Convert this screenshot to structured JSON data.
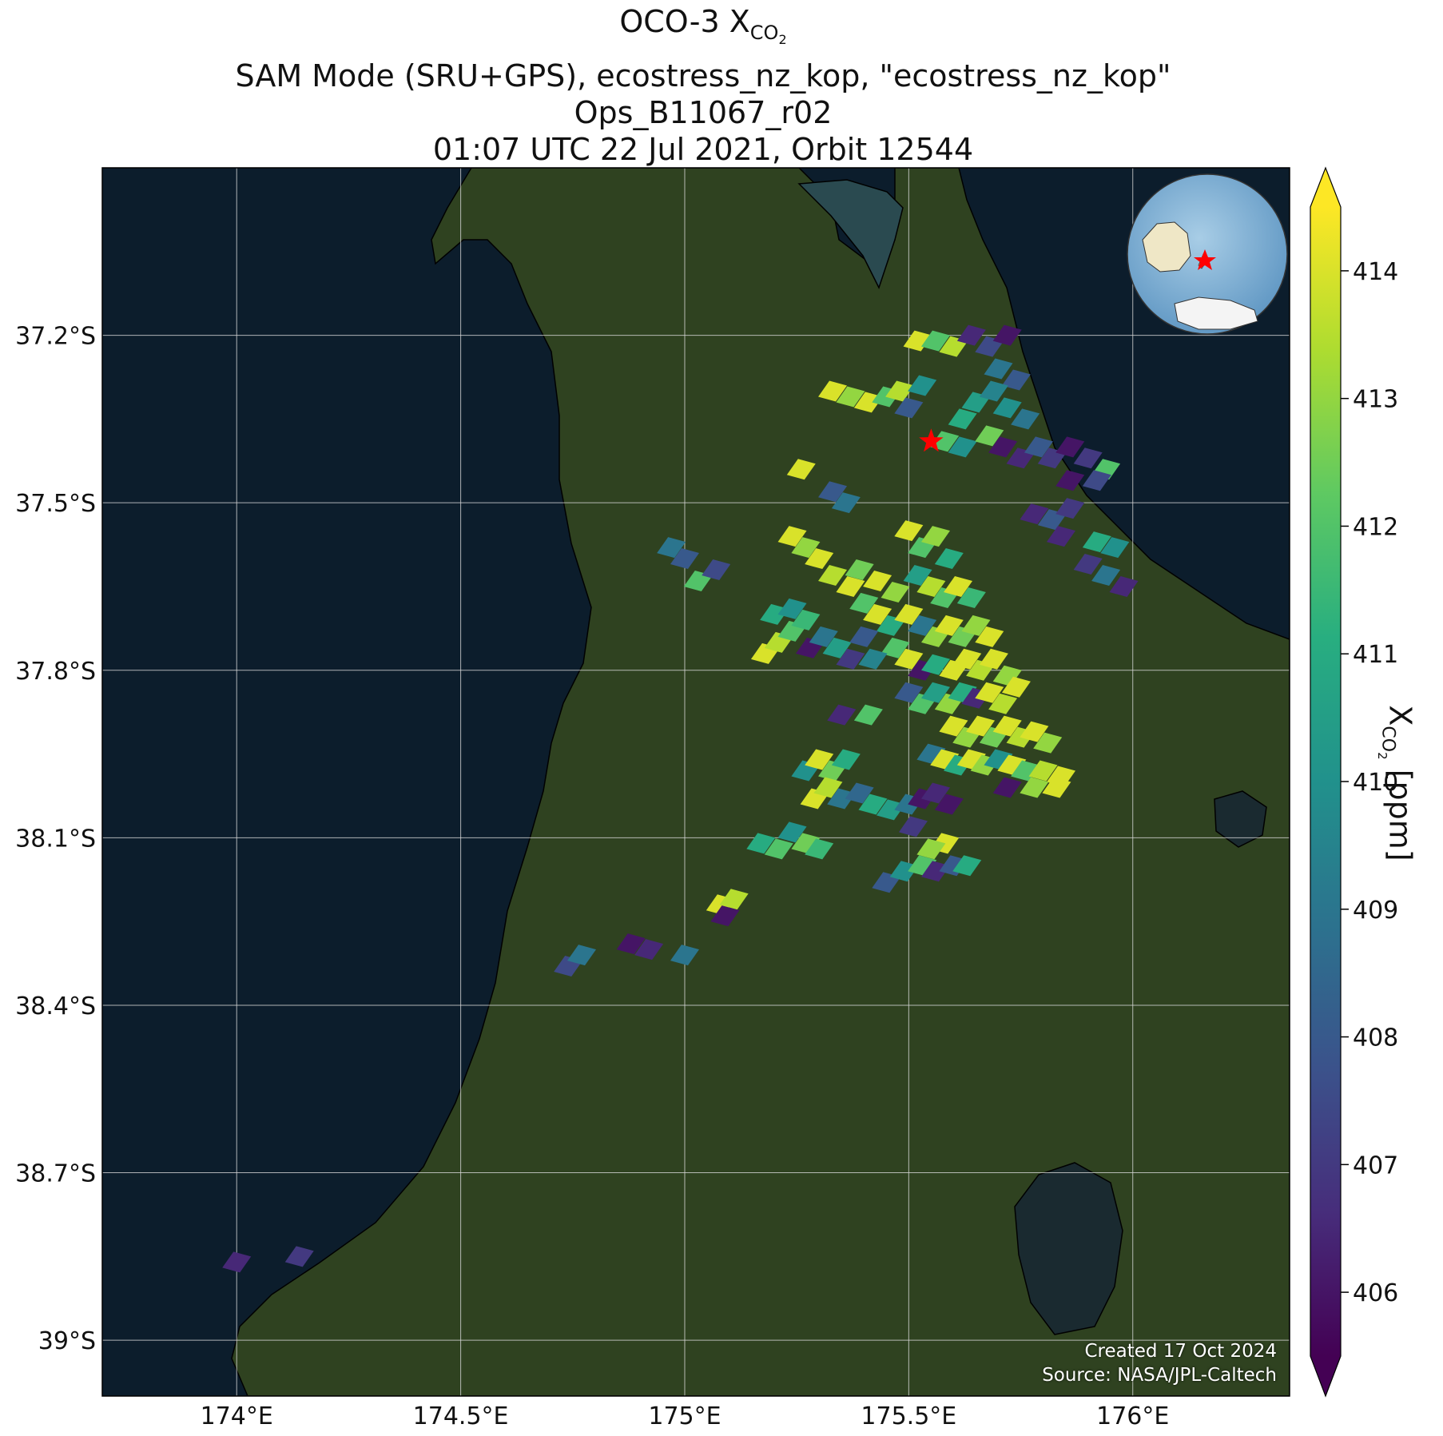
{
  "title": {
    "line1_prefix": "OCO-3 X",
    "line1_sub": "CO",
    "line1_subsub": "2",
    "line2": "SAM Mode (SRU+GPS), ecostress_nz_kop, \"ecostress_nz_kop\"",
    "line3": "Ops_B11067_r02",
    "line4": "01:07 UTC 22 Jul 2021, Orbit 12544"
  },
  "map": {
    "lon_range": [
      173.7,
      176.35
    ],
    "lat_range": [
      -39.1,
      -36.9
    ],
    "lon_ticks": [
      174.0,
      174.5,
      175.0,
      175.5,
      176.0
    ],
    "lon_tick_labels": [
      "174°E",
      "174.5°E",
      "175°E",
      "175.5°E",
      "176°E"
    ],
    "lat_ticks": [
      -37.2,
      -37.5,
      -37.8,
      -38.1,
      -38.4,
      -38.7,
      -39.0
    ],
    "lat_tick_labels": [
      "37.2°S",
      "37.5°S",
      "37.8°S",
      "38.1°S",
      "38.4°S",
      "38.7°S",
      "39°S"
    ],
    "target_marker": {
      "lon": 175.55,
      "lat": -37.39,
      "color": "#ff0000"
    },
    "ocean_color": "#0c1d2c",
    "land_color": "#2f4220",
    "gridlines": true
  },
  "colorbar": {
    "min": 405.5,
    "max": 414.5,
    "ticks": [
      406,
      407,
      408,
      409,
      410,
      411,
      412,
      413,
      414
    ],
    "title_prefix": "X",
    "title_sub": "CO",
    "title_subsub": "2",
    "title_suffix": " [ppm]",
    "colormap": "viridis",
    "extend": "both"
  },
  "credit": {
    "created": "Created 17 Oct 2024",
    "source": "Source: NASA/JPL-Caltech"
  },
  "chart_data": {
    "type": "scatter",
    "xlabel": "",
    "ylabel": "",
    "value_unit": "ppm",
    "soundings": [
      {
        "lon": 175.52,
        "lat": -37.21,
        "xco2": 414
      },
      {
        "lon": 175.56,
        "lat": -37.21,
        "xco2": 412
      },
      {
        "lon": 175.6,
        "lat": -37.22,
        "xco2": 413.5
      },
      {
        "lon": 175.64,
        "lat": -37.2,
        "xco2": 406.5
      },
      {
        "lon": 175.68,
        "lat": -37.22,
        "xco2": 407.5
      },
      {
        "lon": 175.72,
        "lat": -37.2,
        "xco2": 406
      },
      {
        "lon": 175.7,
        "lat": -37.26,
        "xco2": 409
      },
      {
        "lon": 175.74,
        "lat": -37.28,
        "xco2": 408
      },
      {
        "lon": 175.33,
        "lat": -37.3,
        "xco2": 414
      },
      {
        "lon": 175.37,
        "lat": -37.31,
        "xco2": 413
      },
      {
        "lon": 175.41,
        "lat": -37.32,
        "xco2": 414
      },
      {
        "lon": 175.45,
        "lat": -37.31,
        "xco2": 412
      },
      {
        "lon": 175.48,
        "lat": -37.3,
        "xco2": 413.5
      },
      {
        "lon": 175.5,
        "lat": -37.33,
        "xco2": 408
      },
      {
        "lon": 175.53,
        "lat": -37.29,
        "xco2": 410
      },
      {
        "lon": 175.62,
        "lat": -37.35,
        "xco2": 411
      },
      {
        "lon": 175.65,
        "lat": -37.32,
        "xco2": 410.5
      },
      {
        "lon": 175.69,
        "lat": -37.3,
        "xco2": 409.5
      },
      {
        "lon": 175.72,
        "lat": -37.33,
        "xco2": 410
      },
      {
        "lon": 175.76,
        "lat": -37.35,
        "xco2": 409
      },
      {
        "lon": 175.58,
        "lat": -37.39,
        "xco2": 412
      },
      {
        "lon": 175.62,
        "lat": -37.4,
        "xco2": 410
      },
      {
        "lon": 175.68,
        "lat": -37.38,
        "xco2": 412.5
      },
      {
        "lon": 175.71,
        "lat": -37.4,
        "xco2": 406
      },
      {
        "lon": 175.75,
        "lat": -37.42,
        "xco2": 406.5
      },
      {
        "lon": 175.79,
        "lat": -37.4,
        "xco2": 408
      },
      {
        "lon": 175.82,
        "lat": -37.42,
        "xco2": 407
      },
      {
        "lon": 175.86,
        "lat": -37.4,
        "xco2": 406
      },
      {
        "lon": 175.9,
        "lat": -37.42,
        "xco2": 407
      },
      {
        "lon": 175.94,
        "lat": -37.44,
        "xco2": 412
      },
      {
        "lon": 175.86,
        "lat": -37.46,
        "xco2": 406
      },
      {
        "lon": 175.92,
        "lat": -37.46,
        "xco2": 407.5
      },
      {
        "lon": 175.26,
        "lat": -37.44,
        "xco2": 414
      },
      {
        "lon": 175.33,
        "lat": -37.48,
        "xco2": 408
      },
      {
        "lon": 175.36,
        "lat": -37.5,
        "xco2": 409
      },
      {
        "lon": 175.78,
        "lat": -37.52,
        "xco2": 406.5
      },
      {
        "lon": 175.82,
        "lat": -37.53,
        "xco2": 408
      },
      {
        "lon": 175.86,
        "lat": -37.51,
        "xco2": 407
      },
      {
        "lon": 175.84,
        "lat": -37.56,
        "xco2": 406.5
      },
      {
        "lon": 175.92,
        "lat": -37.57,
        "xco2": 411
      },
      {
        "lon": 175.96,
        "lat": -37.58,
        "xco2": 410
      },
      {
        "lon": 175.9,
        "lat": -37.61,
        "xco2": 407
      },
      {
        "lon": 175.94,
        "lat": -37.63,
        "xco2": 409
      },
      {
        "lon": 175.98,
        "lat": -37.65,
        "xco2": 406.5
      },
      {
        "lon": 174.97,
        "lat": -37.58,
        "xco2": 409
      },
      {
        "lon": 175.0,
        "lat": -37.6,
        "xco2": 408
      },
      {
        "lon": 175.03,
        "lat": -37.64,
        "xco2": 412
      },
      {
        "lon": 175.07,
        "lat": -37.62,
        "xco2": 407.5
      },
      {
        "lon": 175.24,
        "lat": -37.56,
        "xco2": 414
      },
      {
        "lon": 175.27,
        "lat": -37.58,
        "xco2": 413
      },
      {
        "lon": 175.3,
        "lat": -37.6,
        "xco2": 414
      },
      {
        "lon": 175.33,
        "lat": -37.63,
        "xco2": 413.5
      },
      {
        "lon": 175.37,
        "lat": -37.65,
        "xco2": 414
      },
      {
        "lon": 175.4,
        "lat": -37.68,
        "xco2": 412
      },
      {
        "lon": 175.43,
        "lat": -37.7,
        "xco2": 414
      },
      {
        "lon": 175.46,
        "lat": -37.72,
        "xco2": 411
      },
      {
        "lon": 175.39,
        "lat": -37.62,
        "xco2": 412.5
      },
      {
        "lon": 175.43,
        "lat": -37.64,
        "xco2": 414
      },
      {
        "lon": 175.47,
        "lat": -37.66,
        "xco2": 413
      },
      {
        "lon": 175.5,
        "lat": -37.55,
        "xco2": 414
      },
      {
        "lon": 175.53,
        "lat": -37.58,
        "xco2": 412
      },
      {
        "lon": 175.56,
        "lat": -37.56,
        "xco2": 413
      },
      {
        "lon": 175.59,
        "lat": -37.6,
        "xco2": 411
      },
      {
        "lon": 175.52,
        "lat": -37.63,
        "xco2": 410.5
      },
      {
        "lon": 175.55,
        "lat": -37.65,
        "xco2": 413.5
      },
      {
        "lon": 175.58,
        "lat": -37.67,
        "xco2": 412
      },
      {
        "lon": 175.61,
        "lat": -37.65,
        "xco2": 414
      },
      {
        "lon": 175.64,
        "lat": -37.67,
        "xco2": 411.5
      },
      {
        "lon": 175.5,
        "lat": -37.7,
        "xco2": 414
      },
      {
        "lon": 175.53,
        "lat": -37.72,
        "xco2": 409
      },
      {
        "lon": 175.56,
        "lat": -37.74,
        "xco2": 413
      },
      {
        "lon": 175.59,
        "lat": -37.72,
        "xco2": 414
      },
      {
        "lon": 175.62,
        "lat": -37.74,
        "xco2": 412.5
      },
      {
        "lon": 175.65,
        "lat": -37.72,
        "xco2": 413
      },
      {
        "lon": 175.68,
        "lat": -37.74,
        "xco2": 414
      },
      {
        "lon": 175.47,
        "lat": -37.76,
        "xco2": 412
      },
      {
        "lon": 175.5,
        "lat": -37.78,
        "xco2": 414
      },
      {
        "lon": 175.53,
        "lat": -37.8,
        "xco2": 406
      },
      {
        "lon": 175.56,
        "lat": -37.79,
        "xco2": 411
      },
      {
        "lon": 175.6,
        "lat": -37.8,
        "xco2": 414
      },
      {
        "lon": 175.63,
        "lat": -37.78,
        "xco2": 414
      },
      {
        "lon": 175.66,
        "lat": -37.8,
        "xco2": 413.5
      },
      {
        "lon": 175.69,
        "lat": -37.78,
        "xco2": 414
      },
      {
        "lon": 175.72,
        "lat": -37.81,
        "xco2": 413
      },
      {
        "lon": 175.74,
        "lat": -37.83,
        "xco2": 414
      },
      {
        "lon": 175.5,
        "lat": -37.84,
        "xco2": 408
      },
      {
        "lon": 175.53,
        "lat": -37.86,
        "xco2": 412
      },
      {
        "lon": 175.56,
        "lat": -37.84,
        "xco2": 410.5
      },
      {
        "lon": 175.59,
        "lat": -37.86,
        "xco2": 413
      },
      {
        "lon": 175.62,
        "lat": -37.84,
        "xco2": 411
      },
      {
        "lon": 175.65,
        "lat": -37.85,
        "xco2": 406.5
      },
      {
        "lon": 175.68,
        "lat": -37.84,
        "xco2": 414
      },
      {
        "lon": 175.71,
        "lat": -37.86,
        "xco2": 413.5
      },
      {
        "lon": 175.6,
        "lat": -37.9,
        "xco2": 414
      },
      {
        "lon": 175.63,
        "lat": -37.92,
        "xco2": 413
      },
      {
        "lon": 175.66,
        "lat": -37.9,
        "xco2": 414
      },
      {
        "lon": 175.69,
        "lat": -37.92,
        "xco2": 412.5
      },
      {
        "lon": 175.72,
        "lat": -37.9,
        "xco2": 414
      },
      {
        "lon": 175.75,
        "lat": -37.92,
        "xco2": 413.5
      },
      {
        "lon": 175.78,
        "lat": -37.91,
        "xco2": 414
      },
      {
        "lon": 175.81,
        "lat": -37.93,
        "xco2": 413
      },
      {
        "lon": 175.55,
        "lat": -37.95,
        "xco2": 409
      },
      {
        "lon": 175.58,
        "lat": -37.96,
        "xco2": 414
      },
      {
        "lon": 175.61,
        "lat": -37.97,
        "xco2": 411
      },
      {
        "lon": 175.64,
        "lat": -37.96,
        "xco2": 414
      },
      {
        "lon": 175.67,
        "lat": -37.97,
        "xco2": 413
      },
      {
        "lon": 175.7,
        "lat": -37.96,
        "xco2": 410
      },
      {
        "lon": 175.73,
        "lat": -37.97,
        "xco2": 414
      },
      {
        "lon": 175.76,
        "lat": -37.98,
        "xco2": 412
      },
      {
        "lon": 175.8,
        "lat": -37.98,
        "xco2": 413.5
      },
      {
        "lon": 175.84,
        "lat": -37.99,
        "xco2": 414
      },
      {
        "lon": 175.72,
        "lat": -38.01,
        "xco2": 406
      },
      {
        "lon": 175.78,
        "lat": -38.01,
        "xco2": 413
      },
      {
        "lon": 175.83,
        "lat": -38.01,
        "xco2": 414
      },
      {
        "lon": 175.18,
        "lat": -37.77,
        "xco2": 414
      },
      {
        "lon": 175.21,
        "lat": -37.75,
        "xco2": 413.5
      },
      {
        "lon": 175.24,
        "lat": -37.73,
        "xco2": 412
      },
      {
        "lon": 175.2,
        "lat": -37.7,
        "xco2": 411
      },
      {
        "lon": 175.24,
        "lat": -37.69,
        "xco2": 410
      },
      {
        "lon": 175.27,
        "lat": -37.71,
        "xco2": 411.5
      },
      {
        "lon": 175.28,
        "lat": -37.76,
        "xco2": 406
      },
      {
        "lon": 175.31,
        "lat": -37.74,
        "xco2": 409
      },
      {
        "lon": 175.34,
        "lat": -37.76,
        "xco2": 410.5
      },
      {
        "lon": 175.37,
        "lat": -37.78,
        "xco2": 407
      },
      {
        "lon": 175.4,
        "lat": -37.74,
        "xco2": 408
      },
      {
        "lon": 175.42,
        "lat": -37.78,
        "xco2": 409.5
      },
      {
        "lon": 175.35,
        "lat": -37.88,
        "xco2": 406.5
      },
      {
        "lon": 175.41,
        "lat": -37.88,
        "xco2": 412
      },
      {
        "lon": 175.27,
        "lat": -37.98,
        "xco2": 410
      },
      {
        "lon": 175.3,
        "lat": -37.96,
        "xco2": 414
      },
      {
        "lon": 175.33,
        "lat": -37.98,
        "xco2": 412.5
      },
      {
        "lon": 175.36,
        "lat": -37.96,
        "xco2": 411
      },
      {
        "lon": 175.29,
        "lat": -38.03,
        "xco2": 414
      },
      {
        "lon": 175.32,
        "lat": -38.01,
        "xco2": 413.5
      },
      {
        "lon": 175.35,
        "lat": -38.03,
        "xco2": 409
      },
      {
        "lon": 175.39,
        "lat": -38.02,
        "xco2": 408.5
      },
      {
        "lon": 175.42,
        "lat": -38.04,
        "xco2": 411
      },
      {
        "lon": 175.46,
        "lat": -38.05,
        "xco2": 410.5
      },
      {
        "lon": 175.5,
        "lat": -38.04,
        "xco2": 409
      },
      {
        "lon": 175.53,
        "lat": -38.03,
        "xco2": 406
      },
      {
        "lon": 175.56,
        "lat": -38.02,
        "xco2": 406.5
      },
      {
        "lon": 175.59,
        "lat": -38.04,
        "xco2": 406
      },
      {
        "lon": 175.51,
        "lat": -38.08,
        "xco2": 407
      },
      {
        "lon": 175.17,
        "lat": -38.11,
        "xco2": 411
      },
      {
        "lon": 175.21,
        "lat": -38.12,
        "xco2": 412
      },
      {
        "lon": 175.24,
        "lat": -38.09,
        "xco2": 410
      },
      {
        "lon": 175.27,
        "lat": -38.11,
        "xco2": 412.5
      },
      {
        "lon": 175.3,
        "lat": -38.12,
        "xco2": 411.5
      },
      {
        "lon": 175.45,
        "lat": -38.18,
        "xco2": 408
      },
      {
        "lon": 175.49,
        "lat": -38.16,
        "xco2": 410
      },
      {
        "lon": 175.53,
        "lat": -38.15,
        "xco2": 412
      },
      {
        "lon": 175.56,
        "lat": -38.16,
        "xco2": 406.5
      },
      {
        "lon": 175.6,
        "lat": -38.15,
        "xco2": 408
      },
      {
        "lon": 175.63,
        "lat": -38.15,
        "xco2": 411
      },
      {
        "lon": 175.58,
        "lat": -38.11,
        "xco2": 414
      },
      {
        "lon": 175.55,
        "lat": -38.12,
        "xco2": 413
      },
      {
        "lon": 175.08,
        "lat": -38.22,
        "xco2": 414
      },
      {
        "lon": 175.11,
        "lat": -38.21,
        "xco2": 413.5
      },
      {
        "lon": 175.09,
        "lat": -38.24,
        "xco2": 406
      },
      {
        "lon": 174.74,
        "lat": -38.33,
        "xco2": 407.5
      },
      {
        "lon": 174.77,
        "lat": -38.31,
        "xco2": 409
      },
      {
        "lon": 174.88,
        "lat": -38.29,
        "xco2": 406
      },
      {
        "lon": 174.92,
        "lat": -38.3,
        "xco2": 406.5
      },
      {
        "lon": 175.0,
        "lat": -38.31,
        "xco2": 409
      },
      {
        "lon": 174.0,
        "lat": -38.86,
        "xco2": 406.5
      },
      {
        "lon": 174.14,
        "lat": -38.85,
        "xco2": 407
      }
    ]
  }
}
